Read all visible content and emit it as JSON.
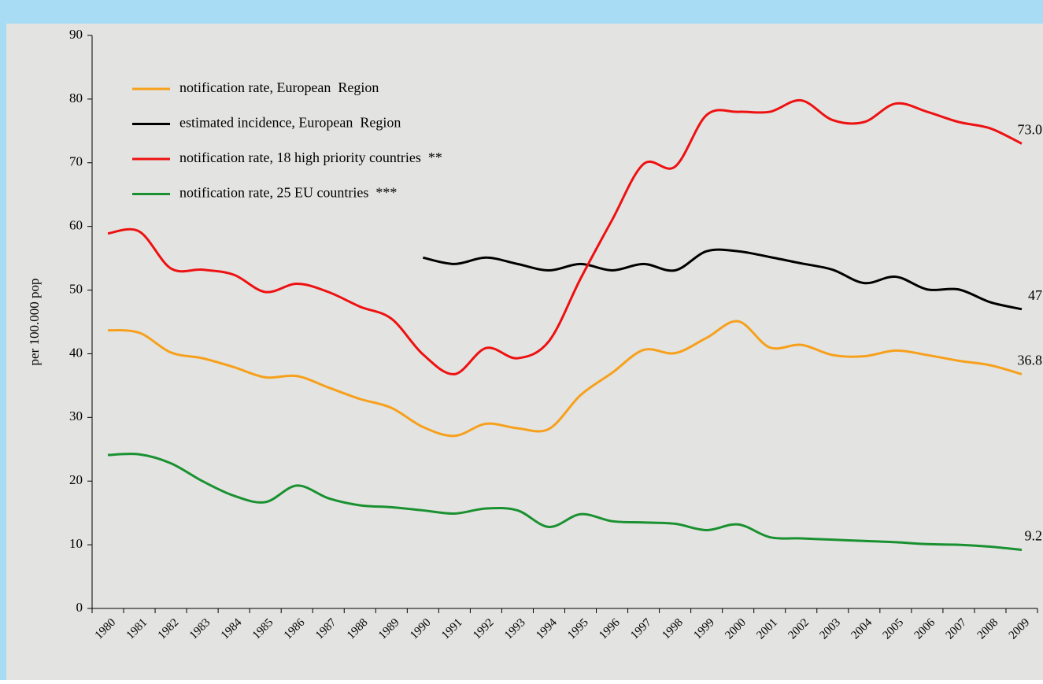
{
  "chart_data": {
    "type": "line",
    "y_label": "per 100.000 pop",
    "categories": [
      "1980",
      "1981",
      "1982",
      "1983",
      "1984",
      "1985",
      "1986",
      "1987",
      "1988",
      "1989",
      "1990",
      "1991",
      "1992",
      "1993",
      "1994",
      "1995",
      "1996",
      "1997",
      "1998",
      "1999",
      "2000",
      "2001",
      "2002",
      "2003",
      "2004",
      "2005",
      "2006",
      "2007",
      "2008",
      "2009"
    ],
    "ylim": [
      0,
      90
    ],
    "yticks": [
      0,
      10,
      20,
      30,
      40,
      50,
      60,
      70,
      80,
      90
    ],
    "grid": false,
    "legend": "upper left",
    "series": [
      {
        "name": "notification rate, European  Region",
        "color": "#f7a01c",
        "values": [
          43.7,
          43.3,
          40.2,
          39.3,
          37.9,
          36.3,
          36.5,
          34.7,
          32.9,
          31.5,
          28.5,
          27.1,
          29.0,
          28.3,
          28.2,
          33.5,
          37.0,
          40.6,
          40.1,
          42.5,
          45.1,
          41.0,
          41.4,
          39.8,
          39.6,
          40.5,
          39.8,
          38.9,
          38.2,
          36.8
        ],
        "value_labels": [
          null,
          null,
          null,
          null,
          null,
          null,
          null,
          null,
          null,
          null,
          null,
          null,
          null,
          null,
          null,
          null,
          null,
          null,
          null,
          null,
          null,
          null,
          null,
          null,
          null,
          null,
          null,
          null,
          null,
          "36.8"
        ]
      },
      {
        "name": "estimated incidence, European  Region",
        "color": "#000000",
        "values": [
          null,
          null,
          null,
          null,
          null,
          null,
          null,
          null,
          null,
          null,
          55.1,
          54.1,
          55.1,
          54.1,
          53.1,
          54.1,
          53.1,
          54.1,
          53.1,
          56.1,
          56.1,
          55.2,
          54.2,
          53.2,
          51.1,
          52.1,
          50.1,
          50.1,
          48.1,
          47
        ],
        "value_labels": [
          null,
          null,
          null,
          null,
          null,
          null,
          null,
          null,
          null,
          null,
          null,
          null,
          null,
          null,
          null,
          null,
          null,
          null,
          null,
          null,
          null,
          null,
          null,
          null,
          null,
          null,
          null,
          null,
          null,
          "47"
        ]
      },
      {
        "name": "notification rate, 18 high priority countries  **",
        "color": "#ee1111",
        "values": [
          58.9,
          59.2,
          53.4,
          53.2,
          52.4,
          49.7,
          51.0,
          49.7,
          47.4,
          45.5,
          39.9,
          36.8,
          40.9,
          39.3,
          42.0,
          51.8,
          61.0,
          69.8,
          69.4,
          77.5,
          78.0,
          78.0,
          79.8,
          76.7,
          76.4,
          79.3,
          78.0,
          76.4,
          75.4,
          73.0
        ],
        "value_labels": [
          null,
          null,
          null,
          null,
          null,
          null,
          null,
          null,
          null,
          null,
          null,
          null,
          null,
          null,
          null,
          null,
          null,
          null,
          null,
          null,
          null,
          null,
          null,
          null,
          null,
          null,
          null,
          null,
          null,
          "73.0"
        ]
      },
      {
        "name": "notification rate, 25 EU countries  ***",
        "color": "#1a9130",
        "values": [
          24.1,
          24.2,
          22.8,
          20.0,
          17.7,
          16.7,
          19.3,
          17.3,
          16.2,
          15.9,
          15.4,
          14.9,
          15.7,
          15.4,
          12.8,
          14.8,
          13.7,
          13.5,
          13.3,
          12.3,
          13.2,
          11.2,
          11.0,
          10.8,
          10.6,
          10.4,
          10.1,
          10.0,
          9.7,
          9.2
        ],
        "value_labels": [
          null,
          null,
          null,
          null,
          null,
          null,
          null,
          null,
          null,
          null,
          null,
          null,
          null,
          null,
          null,
          null,
          null,
          null,
          null,
          null,
          null,
          null,
          null,
          null,
          null,
          null,
          null,
          null,
          null,
          "9.2"
        ]
      }
    ]
  }
}
